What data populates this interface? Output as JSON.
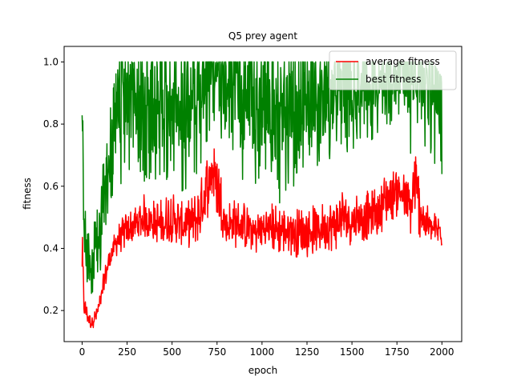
{
  "chart_data": {
    "type": "line",
    "title": "Q5 prey agent",
    "xlabel": "epoch",
    "ylabel": "fitness",
    "xlim": [
      -100,
      2110
    ],
    "ylim": [
      0.1,
      1.05
    ],
    "xticks": [
      0,
      250,
      500,
      750,
      1000,
      1250,
      1500,
      1750,
      2000
    ],
    "yticks": [
      0.2,
      0.4,
      0.6,
      0.8,
      1.0
    ],
    "xtick_labels": [
      "0",
      "250",
      "500",
      "750",
      "1000",
      "1250",
      "1500",
      "1750",
      "2000"
    ],
    "ytick_labels": [
      "0.2",
      "0.4",
      "0.6",
      "0.8",
      "1.0"
    ],
    "grid": false,
    "legend_position": "upper right",
    "series": [
      {
        "name": "average fitness",
        "color": "#ff0000",
        "x": [
          0,
          10,
          25,
          50,
          75,
          100,
          125,
          150,
          175,
          200,
          250,
          300,
          350,
          400,
          450,
          500,
          550,
          600,
          650,
          700,
          725,
          750,
          800,
          850,
          900,
          950,
          1000,
          1050,
          1100,
          1150,
          1200,
          1250,
          1300,
          1350,
          1400,
          1450,
          1500,
          1550,
          1600,
          1650,
          1700,
          1750,
          1800,
          1825,
          1850,
          1900,
          1950,
          2000
        ],
        "y": [
          0.45,
          0.22,
          0.19,
          0.16,
          0.18,
          0.22,
          0.3,
          0.36,
          0.4,
          0.43,
          0.46,
          0.47,
          0.5,
          0.48,
          0.47,
          0.49,
          0.47,
          0.48,
          0.5,
          0.6,
          0.66,
          0.6,
          0.47,
          0.48,
          0.47,
          0.45,
          0.46,
          0.47,
          0.46,
          0.46,
          0.45,
          0.45,
          0.46,
          0.47,
          0.47,
          0.49,
          0.49,
          0.5,
          0.5,
          0.52,
          0.56,
          0.6,
          0.56,
          0.52,
          0.6,
          0.48,
          0.46,
          0.46
        ],
        "range_y": [
          [
            0.28,
            0.48
          ],
          [
            0.18,
            0.26
          ],
          [
            0.16,
            0.22
          ],
          [
            0.14,
            0.18
          ],
          [
            0.15,
            0.21
          ],
          [
            0.19,
            0.26
          ],
          [
            0.26,
            0.34
          ],
          [
            0.32,
            0.4
          ],
          [
            0.36,
            0.44
          ],
          [
            0.38,
            0.48
          ],
          [
            0.4,
            0.52
          ],
          [
            0.42,
            0.54
          ],
          [
            0.43,
            0.58
          ],
          [
            0.42,
            0.56
          ],
          [
            0.41,
            0.56
          ],
          [
            0.42,
            0.6
          ],
          [
            0.41,
            0.55
          ],
          [
            0.4,
            0.56
          ],
          [
            0.42,
            0.6
          ],
          [
            0.5,
            0.72
          ],
          [
            0.55,
            0.74
          ],
          [
            0.5,
            0.72
          ],
          [
            0.4,
            0.56
          ],
          [
            0.4,
            0.56
          ],
          [
            0.4,
            0.55
          ],
          [
            0.38,
            0.52
          ],
          [
            0.38,
            0.54
          ],
          [
            0.39,
            0.55
          ],
          [
            0.38,
            0.54
          ],
          [
            0.38,
            0.53
          ],
          [
            0.37,
            0.53
          ],
          [
            0.37,
            0.54
          ],
          [
            0.38,
            0.54
          ],
          [
            0.39,
            0.55
          ],
          [
            0.39,
            0.56
          ],
          [
            0.41,
            0.6
          ],
          [
            0.41,
            0.58
          ],
          [
            0.42,
            0.6
          ],
          [
            0.43,
            0.58
          ],
          [
            0.44,
            0.62
          ],
          [
            0.48,
            0.65
          ],
          [
            0.5,
            0.66
          ],
          [
            0.47,
            0.64
          ],
          [
            0.44,
            0.6
          ],
          [
            0.45,
            0.75
          ],
          [
            0.42,
            0.56
          ],
          [
            0.42,
            0.52
          ],
          [
            0.39,
            0.5
          ]
        ]
      },
      {
        "name": "best fitness",
        "color": "#008000",
        "x": [
          0,
          10,
          25,
          50,
          75,
          100,
          125,
          150,
          175,
          200,
          250,
          300,
          350,
          400,
          450,
          500,
          550,
          600,
          650,
          700,
          725,
          750,
          800,
          850,
          900,
          950,
          1000,
          1050,
          1100,
          1150,
          1200,
          1250,
          1300,
          1350,
          1400,
          1450,
          1500,
          1550,
          1600,
          1650,
          1700,
          1750,
          1800,
          1825,
          1850,
          1900,
          1950,
          2000
        ],
        "y": [
          1.0,
          0.45,
          0.38,
          0.33,
          0.38,
          0.45,
          0.55,
          0.65,
          0.75,
          0.82,
          0.88,
          0.9,
          0.87,
          0.88,
          0.86,
          0.88,
          0.85,
          0.86,
          0.9,
          0.95,
          0.97,
          0.95,
          0.88,
          0.86,
          0.85,
          0.83,
          0.84,
          0.85,
          0.83,
          0.84,
          0.83,
          0.85,
          0.86,
          0.87,
          0.88,
          0.9,
          0.9,
          0.91,
          0.92,
          0.93,
          0.95,
          0.96,
          0.94,
          0.9,
          0.96,
          0.92,
          0.88,
          0.85
        ],
        "range_y": [
          [
            0.3,
            1.0
          ],
          [
            0.35,
            0.55
          ],
          [
            0.28,
            0.5
          ],
          [
            0.25,
            0.45
          ],
          [
            0.28,
            0.5
          ],
          [
            0.3,
            0.58
          ],
          [
            0.4,
            0.72
          ],
          [
            0.5,
            0.82
          ],
          [
            0.58,
            0.92
          ],
          [
            0.6,
            1.0
          ],
          [
            0.62,
            1.0
          ],
          [
            0.65,
            1.0
          ],
          [
            0.6,
            1.0
          ],
          [
            0.62,
            1.0
          ],
          [
            0.6,
            1.0
          ],
          [
            0.63,
            1.0
          ],
          [
            0.58,
            1.0
          ],
          [
            0.6,
            1.0
          ],
          [
            0.65,
            1.0
          ],
          [
            0.75,
            1.0
          ],
          [
            0.8,
            1.0
          ],
          [
            0.78,
            1.0
          ],
          [
            0.65,
            1.0
          ],
          [
            0.62,
            1.0
          ],
          [
            0.6,
            1.0
          ],
          [
            0.58,
            1.0
          ],
          [
            0.6,
            1.0
          ],
          [
            0.62,
            1.0
          ],
          [
            0.52,
            1.0
          ],
          [
            0.6,
            1.0
          ],
          [
            0.6,
            1.0
          ],
          [
            0.62,
            1.0
          ],
          [
            0.64,
            1.0
          ],
          [
            0.65,
            1.0
          ],
          [
            0.66,
            1.0
          ],
          [
            0.7,
            1.0
          ],
          [
            0.72,
            1.0
          ],
          [
            0.72,
            1.0
          ],
          [
            0.74,
            1.0
          ],
          [
            0.75,
            1.0
          ],
          [
            0.78,
            1.0
          ],
          [
            0.8,
            1.0
          ],
          [
            0.78,
            1.0
          ],
          [
            0.7,
            1.0
          ],
          [
            0.8,
            1.0
          ],
          [
            0.72,
            1.0
          ],
          [
            0.68,
            1.0
          ],
          [
            0.6,
            0.95
          ]
        ]
      }
    ]
  }
}
